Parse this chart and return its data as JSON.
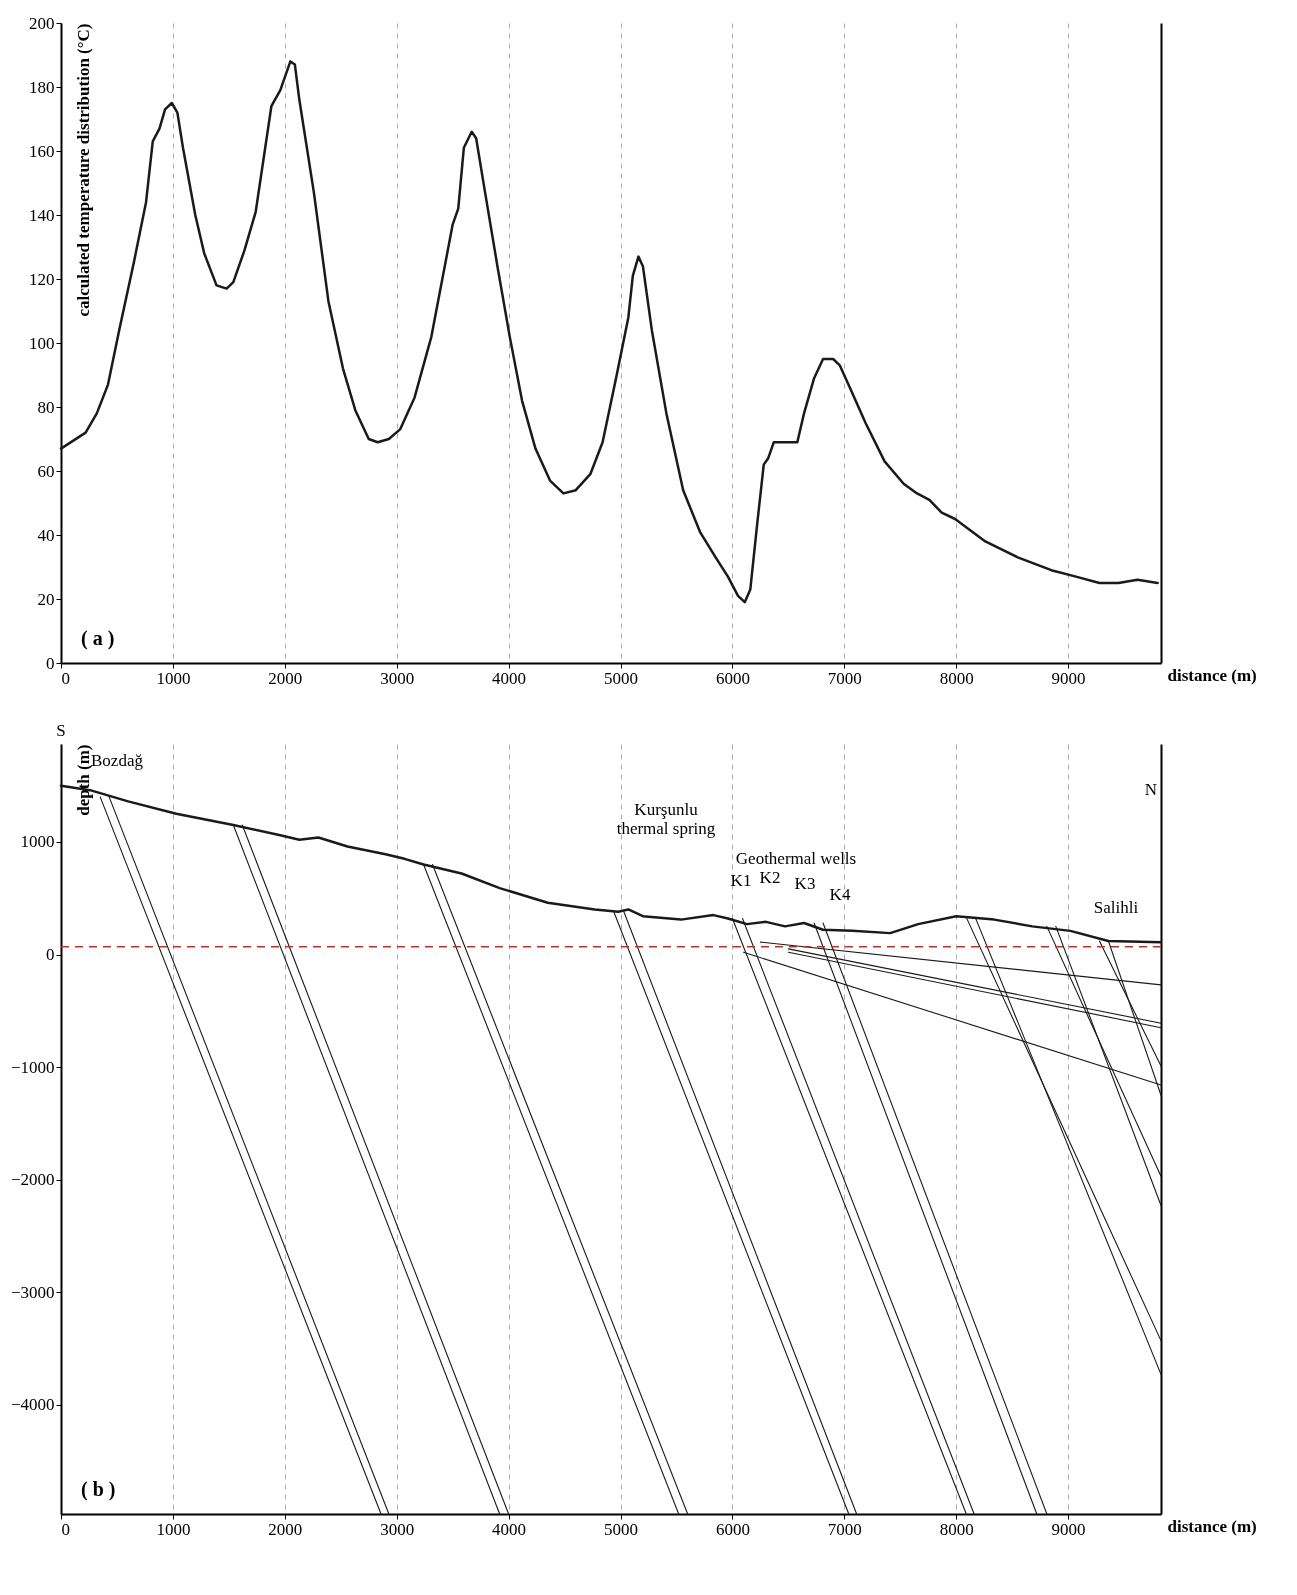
{
  "chart_data": [
    {
      "type": "line",
      "xlabel": "distance (m)",
      "ylabel": "calculated temperature distribution (°C)",
      "xlim": [
        0,
        9830
      ],
      "ylim": [
        0,
        200
      ],
      "xticks": [
        0,
        1000,
        2000,
        3000,
        4000,
        5000,
        6000,
        7000,
        8000,
        9000
      ],
      "yticks": [
        0,
        20,
        40,
        60,
        80,
        100,
        120,
        140,
        160,
        180,
        200
      ],
      "grid": "x",
      "legend": false,
      "annotations": [
        "( a )"
      ],
      "series": [
        {
          "color": "#1a1a1a",
          "x": [
            0,
            220,
            320,
            420,
            520,
            650,
            760,
            820,
            880,
            930,
            990,
            1040,
            1090,
            1200,
            1280,
            1390,
            1480,
            1540,
            1640,
            1740,
            1880,
            1960,
            2050,
            2090,
            2130,
            2260,
            2390,
            2520,
            2630,
            2750,
            2830,
            2930,
            3030,
            3160,
            3310,
            3500,
            3550,
            3600,
            3670,
            3710,
            3790,
            3900,
            4010,
            4120,
            4240,
            4370,
            4490,
            4600,
            4730,
            4840,
            4960,
            5070,
            5110,
            5160,
            5200,
            5280,
            5410,
            5560,
            5710,
            5850,
            5960,
            6050,
            6110,
            6160,
            6220,
            6280,
            6320,
            6370,
            6430,
            6510,
            6580,
            6640,
            6730,
            6810,
            6900,
            6960,
            7050,
            7190,
            7360,
            7530,
            7650,
            7760,
            7870,
            7990,
            8260,
            8550,
            8850,
            9070,
            9280,
            9450,
            9620,
            9800
          ],
          "values": [
            67,
            72,
            78,
            87,
            104,
            125,
            144,
            163,
            167,
            173,
            175,
            172,
            161,
            140,
            128,
            118,
            117,
            119,
            129,
            141,
            174,
            179,
            188,
            187,
            176,
            147,
            113,
            92,
            79,
            70,
            69,
            70,
            73,
            83,
            102,
            137,
            142,
            161,
            166,
            164,
            147,
            124,
            102,
            82,
            67,
            57,
            53,
            54,
            59,
            69,
            89,
            108,
            121,
            127,
            124,
            104,
            78,
            54,
            41,
            33,
            27,
            21,
            19,
            23,
            43,
            62,
            64,
            69,
            69,
            69,
            69,
            78,
            89,
            95,
            95,
            93,
            86,
            75,
            63,
            56,
            53,
            51,
            47,
            45,
            38,
            33,
            29,
            27,
            25,
            25,
            26,
            25
          ]
        }
      ]
    },
    {
      "type": "line",
      "xlabel": "distance (m)",
      "ylabel": "depth (m)",
      "xlim": [
        0,
        9830
      ],
      "ylim": [
        -4970,
        1870
      ],
      "xticks": [
        0,
        1000,
        2000,
        3000,
        4000,
        5000,
        6000,
        7000,
        8000,
        9000
      ],
      "yticks": [
        -4000,
        -3000,
        -2000,
        -1000,
        0,
        1000
      ],
      "grid": "x",
      "legend": false,
      "ref_lines": [
        {
          "axis": "y",
          "value": 70,
          "color": "#d62728",
          "line_style": "dashed"
        }
      ],
      "annotations": [
        "( b )",
        "S",
        "Bozdağ",
        "Kurşunlu\nthermal spring",
        "Geothermal wells",
        "K1",
        "K2",
        "K3",
        "K4",
        "N",
        "Salihli"
      ],
      "series": [
        {
          "color": "#1a1a1a",
          "x": [
            0,
            260,
            600,
            1030,
            1540,
            1960,
            2130,
            2300,
            2560,
            2900,
            3070,
            3240,
            3580,
            3920,
            4350,
            4770,
            4980,
            5070,
            5200,
            5540,
            5830,
            5960,
            6130,
            6300,
            6470,
            6640,
            6810,
            7070,
            7410,
            7660,
            8000,
            8340,
            8680,
            9020,
            9360,
            9830
          ],
          "values": [
            1500,
            1460,
            1360,
            1250,
            1150,
            1060,
            1020,
            1040,
            960,
            890,
            850,
            800,
            720,
            590,
            460,
            400,
            380,
            400,
            340,
            310,
            350,
            320,
            270,
            290,
            250,
            280,
            220,
            210,
            190,
            270,
            340,
            310,
            250,
            210,
            120,
            110
          ]
        },
        {
          "color": "#1a1a1a",
          "x": [
            350,
            2860
          ],
          "values": [
            1400,
            -4970
          ]
        },
        {
          "color": "#1a1a1a",
          "x": [
            430,
            2930
          ],
          "values": [
            1400,
            -4970
          ]
        },
        {
          "color": "#1a1a1a",
          "x": [
            1540,
            3920
          ],
          "values": [
            1150,
            -4970
          ]
        },
        {
          "color": "#1a1a1a",
          "x": [
            1620,
            4000
          ],
          "values": [
            1150,
            -4970
          ]
        },
        {
          "color": "#1a1a1a",
          "x": [
            3240,
            5520
          ],
          "values": [
            800,
            -4970
          ]
        },
        {
          "color": "#1a1a1a",
          "x": [
            3320,
            5600
          ],
          "values": [
            800,
            -4970
          ]
        },
        {
          "color": "#1a1a1a",
          "x": [
            4940,
            7040
          ],
          "values": [
            380,
            -4970
          ]
        },
        {
          "color": "#1a1a1a",
          "x": [
            5030,
            7110
          ],
          "values": [
            380,
            -4970
          ]
        },
        {
          "color": "#1a1a1a",
          "x": [
            6000,
            8090
          ],
          "values": [
            320,
            -4970
          ]
        },
        {
          "color": "#1a1a1a",
          "x": [
            6090,
            8160
          ],
          "values": [
            320,
            -4970
          ]
        },
        {
          "color": "#1a1a1a",
          "x": [
            6730,
            8720
          ],
          "values": [
            280,
            -4970
          ]
        },
        {
          "color": "#1a1a1a",
          "x": [
            6810,
            8810
          ],
          "values": [
            280,
            -4970
          ]
        },
        {
          "color": "#1a1a1a",
          "x": [
            8090,
            9830
          ],
          "values": [
            330,
            -3430
          ]
        },
        {
          "color": "#1a1a1a",
          "x": [
            8170,
            9830
          ],
          "values": [
            330,
            -3730
          ]
        },
        {
          "color": "#1a1a1a",
          "x": [
            8810,
            9830
          ],
          "values": [
            250,
            -1970
          ]
        },
        {
          "color": "#1a1a1a",
          "x": [
            8890,
            9830
          ],
          "values": [
            250,
            -2230
          ]
        },
        {
          "color": "#1a1a1a",
          "x": [
            9280,
            9830
          ],
          "values": [
            120,
            -990
          ]
        },
        {
          "color": "#1a1a1a",
          "x": [
            9360,
            9830
          ],
          "values": [
            120,
            -1250
          ]
        },
        {
          "color": "#1a1a1a",
          "x": [
            6250,
            9830
          ],
          "values": [
            110,
            -270
          ]
        },
        {
          "color": "#1a1a1a",
          "x": [
            6500,
            9830
          ],
          "values": [
            50,
            -610
          ]
        },
        {
          "color": "#1a1a1a",
          "x": [
            6500,
            9830
          ],
          "values": [
            20,
            -650
          ]
        },
        {
          "color": "#1a1a1a",
          "x": [
            6100,
            9830
          ],
          "values": [
            20,
            -1160
          ]
        }
      ]
    }
  ]
}
